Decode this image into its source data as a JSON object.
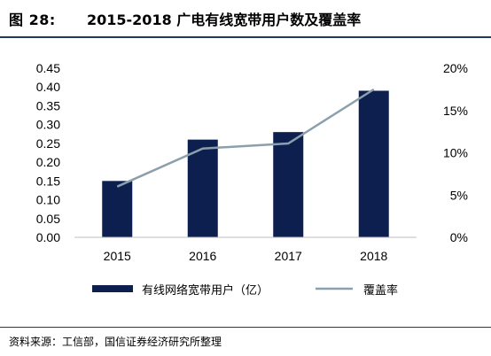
{
  "header": {
    "figure_label": "图 28:",
    "figure_title": "2015-2018 广电有线宽带用户数及覆盖率"
  },
  "source": "资料来源：工信部，国信证券经济研究所整理",
  "colors": {
    "bar": "#0d1f4e",
    "line": "#8c9fad",
    "rule": "#1f3864"
  },
  "chart_data": {
    "type": "bar",
    "categories": [
      "2015",
      "2016",
      "2017",
      "2018"
    ],
    "series": [
      {
        "name": "有线网络宽带用户（亿）",
        "type": "bar",
        "axis": "left",
        "values": [
          0.15,
          0.26,
          0.28,
          0.39
        ]
      },
      {
        "name": "覆盖率",
        "type": "line",
        "axis": "right",
        "values": [
          6.0,
          10.5,
          11.1,
          17.5
        ]
      }
    ],
    "y_left": {
      "min": 0,
      "max": 0.45,
      "step": 0.05,
      "ticks": [
        "0.00",
        "0.05",
        "0.10",
        "0.15",
        "0.20",
        "0.25",
        "0.30",
        "0.35",
        "0.40",
        "0.45"
      ]
    },
    "y_right": {
      "min": 0,
      "max": 20,
      "step": 5,
      "ticks": [
        "0%",
        "5%",
        "10%",
        "15%",
        "20%"
      ]
    },
    "grid": false,
    "legend_position": "bottom"
  }
}
